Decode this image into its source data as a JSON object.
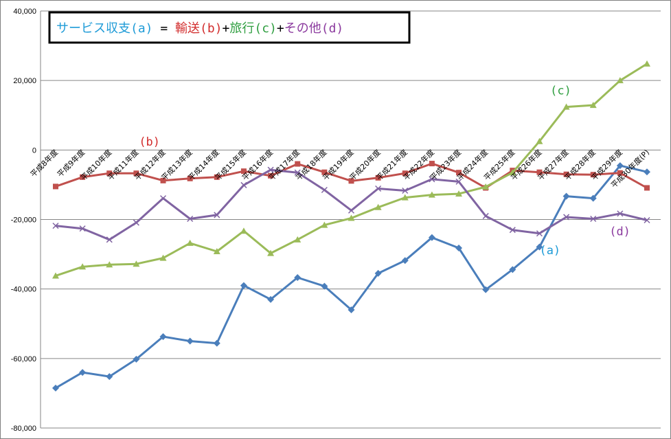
{
  "chart_data": {
    "type": "line",
    "title_parts": [
      {
        "text": "サービス収支(a)",
        "color": "#1e9bd7"
      },
      {
        "text": " = ",
        "color": "#000000"
      },
      {
        "text": "輸送(b)",
        "color": "#d22d2d"
      },
      {
        "text": "+",
        "color": "#000000"
      },
      {
        "text": "旅行(c)",
        "color": "#2e9e3f"
      },
      {
        "text": "+",
        "color": "#000000"
      },
      {
        "text": "その他(d)",
        "color": "#8b3a9e"
      }
    ],
    "ylim": [
      -80000,
      40000
    ],
    "yticks": [
      {
        "v": 40000,
        "label": "40,000"
      },
      {
        "v": 20000,
        "label": "20,000"
      },
      {
        "v": 0,
        "label": "0"
      },
      {
        "v": -20000,
        "label": "-20,000"
      },
      {
        "v": -40000,
        "label": "-40,000"
      },
      {
        "v": -60000,
        "label": "-60,000"
      },
      {
        "v": -80000,
        "label": "-80,000"
      }
    ],
    "grid": true,
    "categories": [
      "平成8年度",
      "平成9年度",
      "平成10年度",
      "平成11年度",
      "平成12年度",
      "平成13年度",
      "平成14年度",
      "平成15年度",
      "平成16年度",
      "平成17年度",
      "平成18年度",
      "平成19年度",
      "平成20年度",
      "平成21年度",
      "平成22年度",
      "平成23年度",
      "平成24年度",
      "平成25年度",
      "平成26年度",
      "平成27年度",
      "平成28年度",
      "平成29年度",
      "平成30年度(P)"
    ],
    "series": [
      {
        "key": "a",
        "color": "#4a7ebb",
        "marker": "diamond",
        "values": [
          -68500,
          -64000,
          -65200,
          -60200,
          -53700,
          -55000,
          -55600,
          -39000,
          -43000,
          -36700,
          -39200,
          -46000,
          -35500,
          -31800,
          -25200,
          -28200,
          -40200,
          -34400,
          -27900,
          -13300,
          -13900,
          -4500,
          -6300
        ]
      },
      {
        "key": "b",
        "color": "#c0504d",
        "marker": "square",
        "values": [
          -10500,
          -7800,
          -6700,
          -6700,
          -8800,
          -8200,
          -7800,
          -6100,
          -7400,
          -4000,
          -6400,
          -8900,
          -8000,
          -6700,
          -3900,
          -6500,
          -10900,
          -5900,
          -6400,
          -7000,
          -7100,
          -6600,
          -10900
        ]
      },
      {
        "key": "c",
        "color": "#9bbb59",
        "marker": "triangle",
        "values": [
          -36200,
          -33600,
          -33000,
          -32800,
          -31100,
          -26800,
          -29200,
          -23300,
          -29700,
          -25800,
          -21600,
          -19600,
          -16500,
          -13700,
          -12900,
          -12600,
          -10600,
          -6500,
          2500,
          12400,
          12900,
          20000,
          24800
        ]
      },
      {
        "key": "d",
        "color": "#8064a2",
        "marker": "x",
        "values": [
          -21800,
          -22600,
          -25800,
          -20900,
          -13900,
          -19800,
          -18700,
          -10100,
          -5700,
          -6500,
          -11500,
          -17400,
          -11100,
          -11700,
          -8400,
          -9100,
          -19000,
          -23000,
          -24000,
          -19300,
          -19800,
          -18300,
          -20200
        ]
      }
    ],
    "series_labels": [
      {
        "key": "a",
        "text": "(a)",
        "color": "#1e9bd7",
        "at": {
          "index": 18,
          "value": -30000
        }
      },
      {
        "key": "b",
        "text": "(b)",
        "color": "#d22d2d",
        "at": {
          "index": 3.1,
          "value": 1300
        }
      },
      {
        "key": "c",
        "text": "(c)",
        "color": "#2e9e3f",
        "at": {
          "index": 18.4,
          "value": 16000
        }
      },
      {
        "key": "d",
        "text": "(d)",
        "color": "#8b3a9e",
        "at": {
          "index": 20.6,
          "value": -24500
        }
      }
    ]
  }
}
